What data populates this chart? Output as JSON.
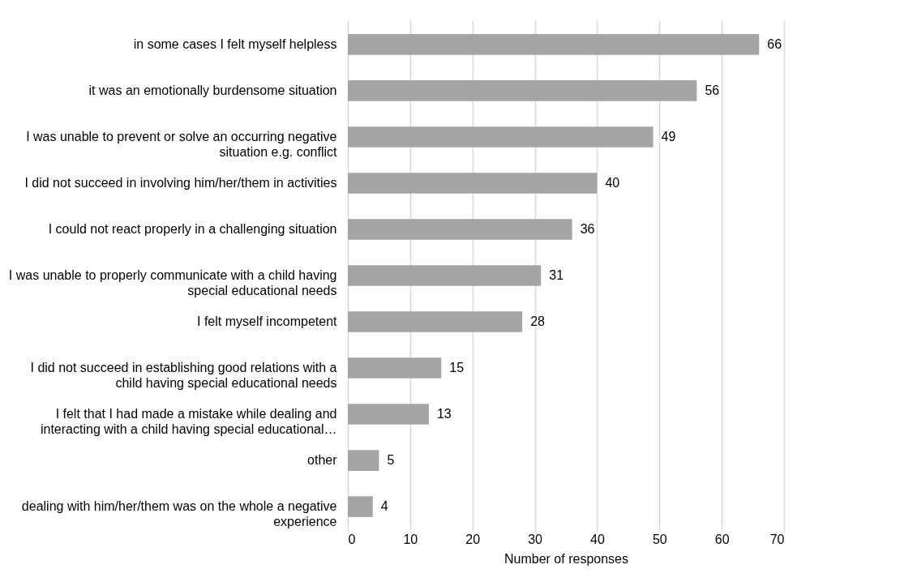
{
  "chart_data": {
    "type": "bar",
    "orientation": "horizontal",
    "categories": [
      "in some cases I felt myself helpless",
      "it was an emotionally burdensome situation",
      "I was unable to prevent or solve an occurring negative situation e.g. conflict",
      "I did not succeed in involving him/her/them in activities",
      "I could not react properly in a challenging situation",
      "I was unable to properly communicate with a child having special educational needs",
      "I felt myself incompetent",
      "I did not succeed in establishing good relations with a child having special educational needs",
      "I felt that I had made a mistake while dealing and interacting with a child having special educational…",
      "other",
      "dealing with him/her/them was on the whole a negative experience"
    ],
    "values": [
      66,
      56,
      49,
      40,
      36,
      31,
      28,
      15,
      13,
      5,
      4
    ],
    "color": "#a5a5a5",
    "xlabel": "Number of responses",
    "xlim": [
      0,
      70
    ],
    "xticks": [
      0,
      10,
      20,
      30,
      40,
      50,
      60,
      70
    ],
    "grid": "x",
    "data_labels": true
  }
}
